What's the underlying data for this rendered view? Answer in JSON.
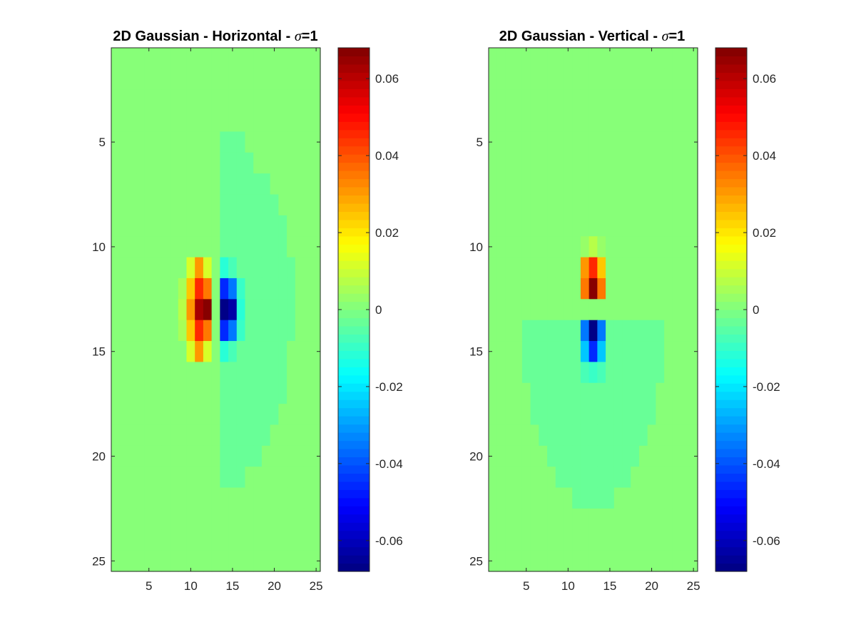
{
  "chart_data": [
    {
      "type": "heatmap",
      "title": "2D Gaussian - Horizontal - ",
      "title_symbol": "σ",
      "title_suffix": "=1",
      "colormap": "jet",
      "xlim": [
        0.5,
        25.5
      ],
      "ylim": [
        0.5,
        25.5
      ],
      "y_reversed": true,
      "xticks": [
        "5",
        "10",
        "15",
        "20",
        "25"
      ],
      "xtick_values": [
        5,
        10,
        15,
        20,
        25
      ],
      "yticks": [
        "5",
        "10",
        "15",
        "20",
        "25"
      ],
      "ytick_values": [
        5,
        10,
        15,
        20,
        25
      ],
      "colorbar": {
        "limits": [
          -0.068,
          0.068
        ],
        "levels": 64,
        "tick_values": [
          0.06,
          0.04,
          0.02,
          0,
          -0.02,
          -0.04,
          -0.06
        ],
        "tick_labels": [
          "0.06",
          "0.04",
          "0.02",
          "0",
          "-0.02",
          "-0.04",
          "-0.06"
        ]
      },
      "background_value": 0,
      "neg_region_value": -0.0025,
      "neg_region_rows": [
        {
          "row": 5,
          "cols": [
            14,
            16
          ]
        },
        {
          "row": 6,
          "cols": [
            14,
            17
          ]
        },
        {
          "row": 7,
          "cols": [
            14,
            19
          ]
        },
        {
          "row": 8,
          "cols": [
            14,
            20
          ]
        },
        {
          "row": 9,
          "cols": [
            14,
            21
          ]
        },
        {
          "row": 10,
          "cols": [
            14,
            21
          ]
        },
        {
          "row": 11,
          "cols": [
            14,
            22
          ]
        },
        {
          "row": 12,
          "cols": [
            14,
            22
          ]
        },
        {
          "row": 13,
          "cols": [
            14,
            22
          ]
        },
        {
          "row": 14,
          "cols": [
            14,
            22
          ]
        },
        {
          "row": 15,
          "cols": [
            14,
            21
          ]
        },
        {
          "row": 16,
          "cols": [
            14,
            21
          ]
        },
        {
          "row": 17,
          "cols": [
            14,
            21
          ]
        },
        {
          "row": 18,
          "cols": [
            14,
            20
          ]
        },
        {
          "row": 19,
          "cols": [
            14,
            19
          ]
        },
        {
          "row": 20,
          "cols": [
            14,
            18
          ]
        },
        {
          "row": 21,
          "cols": [
            14,
            16
          ]
        }
      ],
      "cells": [
        [
          11,
          10,
          0.012
        ],
        [
          11,
          11,
          0.03
        ],
        [
          11,
          12,
          0.012
        ],
        [
          12,
          9,
          0.006
        ],
        [
          12,
          10,
          0.025
        ],
        [
          12,
          11,
          0.045
        ],
        [
          12,
          12,
          0.036
        ],
        [
          13,
          9,
          0.008
        ],
        [
          13,
          10,
          0.03
        ],
        [
          13,
          11,
          0.062
        ],
        [
          13,
          12,
          0.068
        ],
        [
          14,
          9,
          0.006
        ],
        [
          14,
          10,
          0.025
        ],
        [
          14,
          11,
          0.045
        ],
        [
          14,
          12,
          0.036
        ],
        [
          15,
          10,
          0.012
        ],
        [
          15,
          11,
          0.03
        ],
        [
          15,
          12,
          0.012
        ],
        [
          11,
          14,
          -0.012
        ],
        [
          11,
          15,
          -0.008
        ],
        [
          11,
          16,
          -0.004
        ],
        [
          12,
          14,
          -0.045
        ],
        [
          12,
          15,
          -0.036
        ],
        [
          12,
          16,
          -0.01
        ],
        [
          13,
          14,
          -0.068
        ],
        [
          13,
          15,
          -0.062
        ],
        [
          13,
          16,
          -0.012
        ],
        [
          14,
          14,
          -0.045
        ],
        [
          14,
          15,
          -0.036
        ],
        [
          14,
          16,
          -0.01
        ],
        [
          15,
          14,
          -0.012
        ],
        [
          15,
          15,
          -0.008
        ]
      ]
    },
    {
      "type": "heatmap",
      "title": "2D Gaussian - Vertical - ",
      "title_symbol": "σ",
      "title_suffix": "=1",
      "colormap": "jet",
      "xlim": [
        0.5,
        25.5
      ],
      "ylim": [
        0.5,
        25.5
      ],
      "y_reversed": true,
      "xticks": [
        "5",
        "10",
        "15",
        "20",
        "25"
      ],
      "xtick_values": [
        5,
        10,
        15,
        20,
        25
      ],
      "yticks": [
        "5",
        "10",
        "15",
        "20",
        "25"
      ],
      "ytick_values": [
        5,
        10,
        15,
        20,
        25
      ],
      "colorbar": {
        "limits": [
          -0.068,
          0.068
        ],
        "levels": 64,
        "tick_values": [
          0.06,
          0.04,
          0.02,
          0,
          -0.02,
          -0.04,
          -0.06
        ],
        "tick_labels": [
          "0.06",
          "0.04",
          "0.02",
          "0",
          "-0.02",
          "-0.04",
          "-0.06"
        ]
      },
      "background_value": 0,
      "neg_region_value": -0.0025,
      "neg_region_rows": [
        {
          "row": 14,
          "cols": [
            5,
            21
          ]
        },
        {
          "row": 15,
          "cols": [
            5,
            21
          ]
        },
        {
          "row": 16,
          "cols": [
            5,
            21
          ]
        },
        {
          "row": 17,
          "cols": [
            6,
            20
          ]
        },
        {
          "row": 18,
          "cols": [
            6,
            20
          ]
        },
        {
          "row": 19,
          "cols": [
            7,
            19
          ]
        },
        {
          "row": 20,
          "cols": [
            8,
            18
          ]
        },
        {
          "row": 21,
          "cols": [
            9,
            17
          ]
        },
        {
          "row": 22,
          "cols": [
            11,
            15
          ]
        }
      ],
      "cells": [
        [
          10,
          12,
          0.004
        ],
        [
          10,
          13,
          0.008
        ],
        [
          10,
          14,
          0.004
        ],
        [
          11,
          12,
          0.03
        ],
        [
          11,
          13,
          0.045
        ],
        [
          11,
          14,
          0.025
        ],
        [
          12,
          12,
          0.036
        ],
        [
          12,
          13,
          0.068
        ],
        [
          12,
          14,
          0.036
        ],
        [
          14,
          12,
          -0.036
        ],
        [
          14,
          13,
          -0.068
        ],
        [
          14,
          14,
          -0.036
        ],
        [
          15,
          12,
          -0.025
        ],
        [
          15,
          13,
          -0.045
        ],
        [
          15,
          14,
          -0.025
        ],
        [
          16,
          12,
          -0.008
        ],
        [
          16,
          13,
          -0.01
        ],
        [
          16,
          14,
          -0.008
        ]
      ]
    }
  ]
}
